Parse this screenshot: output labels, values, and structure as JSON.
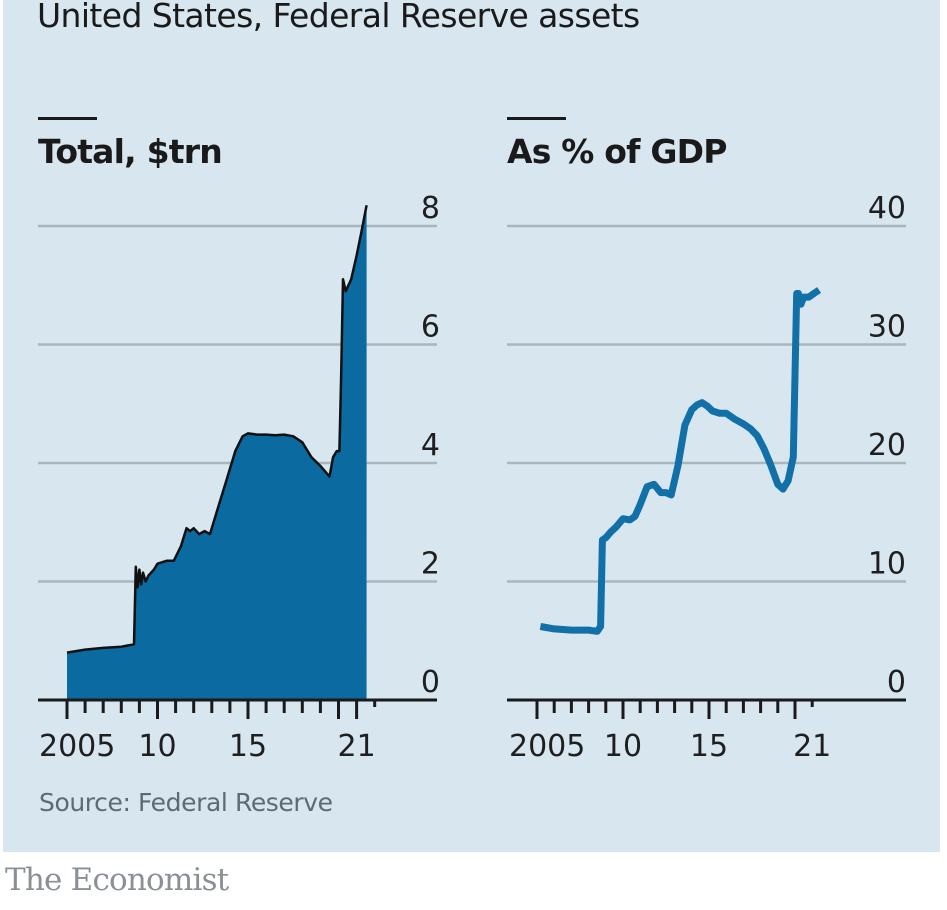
{
  "title": "United States, Federal Reserve assets",
  "source": "Source: Federal Reserve",
  "brand": "The Economist",
  "colors": {
    "background": "#d8e6ef",
    "area_fill": "#0b6a9f",
    "area_outline": "#111111",
    "line": "#1270a8",
    "gridline": "#a9b6bd",
    "axis": "#1a1a1a"
  },
  "chart_data": [
    {
      "type": "area",
      "title": "Total, $trn",
      "xlabel": "",
      "ylabel": "",
      "xlim": [
        2004.5,
        2025.5
      ],
      "ylim": [
        0,
        8
      ],
      "yticks": [
        0,
        2,
        4,
        6,
        8
      ],
      "ytick_labels": [
        "0",
        "2",
        "4",
        "6",
        "8"
      ],
      "xtick_labels": [
        {
          "x": 2005,
          "label": "2005"
        },
        {
          "x": 2010,
          "label": "10"
        },
        {
          "x": 2015,
          "label": "15"
        },
        {
          "x": 2021,
          "label": "21"
        }
      ],
      "minor_ticks": [
        2005,
        2006,
        2007,
        2008,
        2009,
        2010,
        2011,
        2012,
        2013,
        2014,
        2015,
        2016,
        2017,
        2018,
        2019,
        2020,
        2021,
        2022
      ],
      "grid": true,
      "x": [
        2005.0,
        2006.0,
        2007.0,
        2008.0,
        2008.7,
        2008.8,
        2008.9,
        2009.0,
        2009.1,
        2009.2,
        2009.35,
        2009.5,
        2009.8,
        2010.0,
        2010.5,
        2010.9,
        2011.3,
        2011.6,
        2011.8,
        2012.0,
        2012.3,
        2012.6,
        2012.9,
        2013.3,
        2013.8,
        2014.3,
        2014.7,
        2015.0,
        2015.5,
        2016.0,
        2016.5,
        2017.0,
        2017.5,
        2018.0,
        2018.5,
        2019.0,
        2019.5,
        2019.7,
        2019.9,
        2020.05,
        2020.15,
        2020.25,
        2020.4,
        2020.7,
        2021.0,
        2021.3,
        2021.55
      ],
      "values": [
        0.8,
        0.85,
        0.88,
        0.9,
        0.94,
        2.25,
        1.9,
        2.2,
        1.95,
        2.15,
        2.0,
        2.1,
        2.2,
        2.3,
        2.35,
        2.35,
        2.6,
        2.9,
        2.85,
        2.9,
        2.8,
        2.85,
        2.8,
        3.2,
        3.7,
        4.2,
        4.45,
        4.5,
        4.48,
        4.48,
        4.47,
        4.48,
        4.45,
        4.35,
        4.1,
        3.95,
        3.77,
        4.1,
        4.2,
        4.2,
        5.5,
        7.1,
        6.9,
        7.1,
        7.5,
        7.95,
        8.35
      ]
    },
    {
      "type": "line",
      "title": "As % of GDP",
      "xlabel": "",
      "ylabel": "",
      "xlim": [
        2001.0,
        2024.5
      ],
      "ylim": [
        0,
        40
      ],
      "yticks": [
        0,
        10,
        20,
        30,
        40
      ],
      "ytick_labels": [
        "0",
        "10",
        "20",
        "30",
        "40"
      ],
      "xtick_labels": [
        {
          "x": 2005,
          "label": "2005"
        },
        {
          "x": 2010,
          "label": "10"
        },
        {
          "x": 2015,
          "label": "15"
        },
        {
          "x": 2021,
          "label": "21"
        }
      ],
      "minor_ticks": [
        2005,
        2006,
        2007,
        2008,
        2009,
        2010,
        2011,
        2012,
        2013,
        2014,
        2015,
        2016,
        2017,
        2018,
        2019,
        2020,
        2021
      ],
      "grid": true,
      "x": [
        2005.2,
        2006.0,
        2007.0,
        2008.0,
        2008.5,
        2008.7,
        2008.8,
        2009.0,
        2009.3,
        2009.6,
        2010.0,
        2010.4,
        2010.7,
        2011.0,
        2011.4,
        2011.8,
        2012.2,
        2012.5,
        2012.8,
        2013.2,
        2013.6,
        2014.0,
        2014.3,
        2014.6,
        2014.9,
        2015.2,
        2015.6,
        2016.0,
        2016.5,
        2017.0,
        2017.4,
        2017.8,
        2018.2,
        2018.6,
        2019.0,
        2019.3,
        2019.6,
        2019.9,
        2020.1,
        2020.2,
        2020.35,
        2020.5,
        2020.8,
        2021.1,
        2021.4
      ],
      "values": [
        6.2,
        6.0,
        5.9,
        5.9,
        5.8,
        6.2,
        13.5,
        13.7,
        14.2,
        14.6,
        15.3,
        15.2,
        15.5,
        16.5,
        18.0,
        18.2,
        17.5,
        17.5,
        17.3,
        19.8,
        23.2,
        24.5,
        24.9,
        25.1,
        24.8,
        24.4,
        24.2,
        24.2,
        23.7,
        23.3,
        22.9,
        22.3,
        21.2,
        19.8,
        18.2,
        17.8,
        18.5,
        20.5,
        34.3,
        34.3,
        33.4,
        34.0,
        34.0,
        34.3,
        34.6
      ]
    }
  ]
}
